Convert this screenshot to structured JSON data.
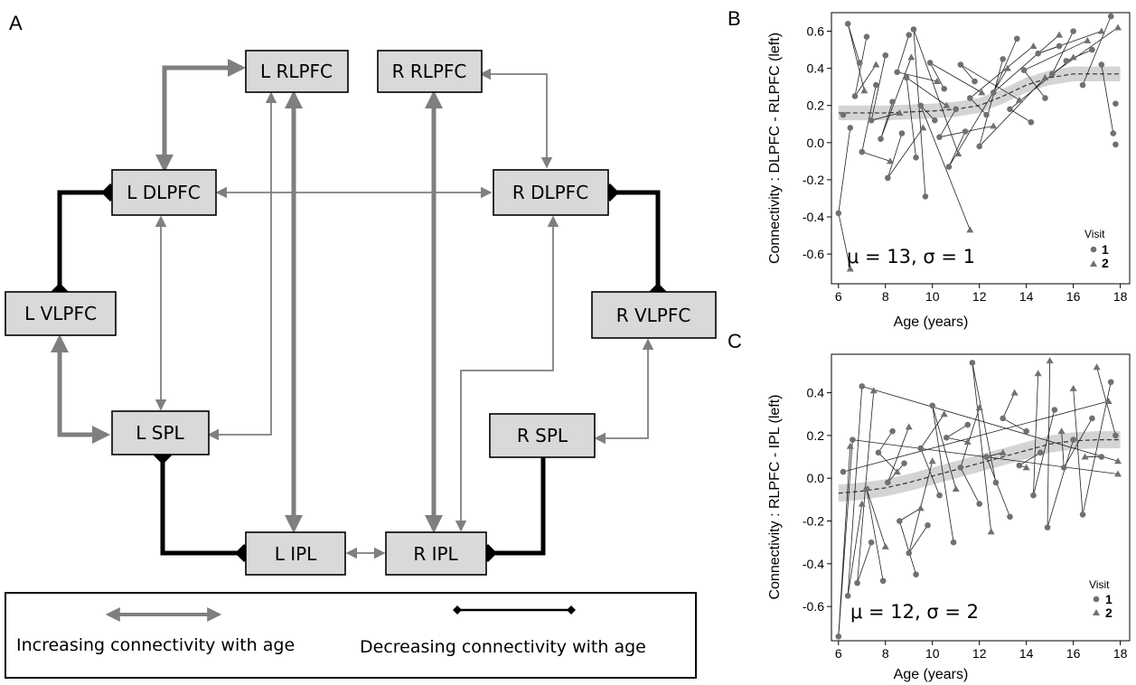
{
  "panels": {
    "a": "A",
    "b": "B",
    "c": "C"
  },
  "diagram": {
    "nodes": [
      {
        "id": "l_rlpfc",
        "label": "L RLPFC"
      },
      {
        "id": "r_rlpfc",
        "label": "R RLPFC"
      },
      {
        "id": "l_dlpfc",
        "label": "L DLPFC"
      },
      {
        "id": "r_dlpfc",
        "label": "R DLPFC"
      },
      {
        "id": "l_vlpfc",
        "label": "L VLPFC"
      },
      {
        "id": "r_vlpfc",
        "label": "R VLPFC"
      },
      {
        "id": "l_spl",
        "label": "L SPL"
      },
      {
        "id": "r_spl",
        "label": "R SPL"
      },
      {
        "id": "l_ipl",
        "label": "L IPL"
      },
      {
        "id": "r_ipl",
        "label": "R IPL"
      }
    ],
    "edges": [
      {
        "from": "l_dlpfc",
        "to": "l_rlpfc",
        "type": "increasing",
        "strength": "strong"
      },
      {
        "from": "l_rlpfc",
        "to": "l_ipl",
        "type": "increasing",
        "strength": "strong"
      },
      {
        "from": "r_rlpfc",
        "to": "r_ipl",
        "type": "increasing",
        "strength": "strong"
      },
      {
        "from": "l_vlpfc",
        "to": "l_spl",
        "type": "increasing",
        "strength": "strong"
      },
      {
        "from": "l_spl",
        "to": "l_rlpfc",
        "type": "increasing",
        "strength": "weak"
      },
      {
        "from": "l_dlpfc",
        "to": "l_spl",
        "type": "increasing",
        "strength": "weak"
      },
      {
        "from": "l_dlpfc",
        "to": "r_dlpfc",
        "type": "increasing",
        "strength": "weak"
      },
      {
        "from": "r_rlpfc",
        "to": "r_dlpfc",
        "type": "increasing",
        "strength": "weak"
      },
      {
        "from": "r_dlpfc",
        "to": "r_ipl",
        "type": "increasing",
        "strength": "weak"
      },
      {
        "from": "r_vlpfc",
        "to": "r_spl",
        "type": "increasing",
        "strength": "weak"
      },
      {
        "from": "l_ipl",
        "to": "r_ipl",
        "type": "increasing",
        "strength": "weak"
      },
      {
        "from": "l_dlpfc",
        "to": "l_vlpfc",
        "type": "decreasing"
      },
      {
        "from": "r_dlpfc",
        "to": "r_vlpfc",
        "type": "decreasing"
      },
      {
        "from": "l_spl",
        "to": "l_ipl",
        "type": "decreasing"
      },
      {
        "from": "r_spl",
        "to": "r_ipl",
        "type": "decreasing"
      }
    ],
    "legend": {
      "increasing": "Increasing connectivity with age",
      "decreasing": "Decreasing connectivity with age"
    }
  },
  "chart_data": [
    {
      "type": "scatter",
      "panel": "B",
      "xlabel": "Age (years)",
      "ylabel": "Connectivity : DLPFC - RLPFC (left)",
      "xlim": [
        5.7,
        18.4
      ],
      "ylim": [
        -0.76,
        0.7
      ],
      "xticks": [
        6,
        8,
        10,
        12,
        14,
        16,
        18
      ],
      "yticks": [
        -0.6,
        -0.4,
        -0.2,
        0.0,
        0.2,
        0.4,
        0.6
      ],
      "ytick_labels": [
        "-0.6",
        "-0.4",
        "-0.2",
        "0.0",
        "0.2",
        "0.4",
        "0.6"
      ],
      "annotation": "μ = 13, σ = 1",
      "legend": {
        "title": "Visit",
        "entries": [
          "1",
          "2"
        ],
        "position": "bottom-right"
      },
      "series": [
        {
          "name": "1",
          "marker": "circle",
          "points": [
            [
              6.0,
              -0.38
            ],
            [
              6.2,
              0.15
            ],
            [
              6.4,
              0.64
            ],
            [
              6.5,
              0.08
            ],
            [
              6.7,
              0.25
            ],
            [
              6.9,
              0.43
            ],
            [
              7.0,
              -0.05
            ],
            [
              7.2,
              0.57
            ],
            [
              7.4,
              0.12
            ],
            [
              7.6,
              0.31
            ],
            [
              7.8,
              0.02
            ],
            [
              8.0,
              0.47
            ],
            [
              8.1,
              -0.19
            ],
            [
              8.3,
              0.22
            ],
            [
              8.5,
              0.38
            ],
            [
              8.7,
              0.05
            ],
            [
              8.9,
              0.35
            ],
            [
              9.0,
              0.58
            ],
            [
              9.2,
              0.61
            ],
            [
              9.3,
              -0.08
            ],
            [
              9.5,
              0.2
            ],
            [
              9.7,
              -0.29
            ],
            [
              9.9,
              0.43
            ],
            [
              10.1,
              0.12
            ],
            [
              10.3,
              0.03
            ],
            [
              10.5,
              0.29
            ],
            [
              10.7,
              -0.13
            ],
            [
              11.0,
              0.18
            ],
            [
              11.2,
              0.42
            ],
            [
              11.4,
              0.06
            ],
            [
              11.6,
              0.24
            ],
            [
              11.8,
              0.33
            ],
            [
              12.0,
              -0.02
            ],
            [
              12.3,
              0.15
            ],
            [
              12.6,
              0.27
            ],
            [
              13.0,
              0.45
            ],
            [
              13.3,
              0.18
            ],
            [
              13.6,
              0.56
            ],
            [
              13.9,
              0.39
            ],
            [
              14.2,
              0.11
            ],
            [
              14.5,
              0.48
            ],
            [
              14.8,
              0.24
            ],
            [
              15.1,
              0.37
            ],
            [
              15.4,
              0.52
            ],
            [
              15.7,
              0.44
            ],
            [
              16.0,
              0.6
            ],
            [
              16.4,
              0.31
            ],
            [
              16.8,
              0.5
            ],
            [
              17.2,
              0.42
            ],
            [
              17.6,
              0.68
            ],
            [
              17.8,
              0.21
            ],
            [
              17.7,
              0.05
            ],
            [
              17.8,
              -0.01
            ]
          ]
        },
        {
          "name": "2",
          "marker": "triangle",
          "points": [
            [
              6.5,
              -0.68
            ],
            [
              7.1,
              0.28
            ],
            [
              7.6,
              0.42
            ],
            [
              8.2,
              -0.1
            ],
            [
              8.6,
              0.16
            ],
            [
              9.1,
              0.46
            ],
            [
              9.6,
              0.08
            ],
            [
              10.2,
              0.33
            ],
            [
              10.6,
              0.2
            ],
            [
              11.1,
              -0.06
            ],
            [
              11.6,
              -0.47
            ],
            [
              12.1,
              0.27
            ],
            [
              12.6,
              0.09
            ],
            [
              13.2,
              0.4
            ],
            [
              13.7,
              0.23
            ],
            [
              14.3,
              0.52
            ],
            [
              14.8,
              0.35
            ],
            [
              15.4,
              0.58
            ],
            [
              16.0,
              0.46
            ],
            [
              16.6,
              0.55
            ],
            [
              17.2,
              0.6
            ],
            [
              17.9,
              0.62
            ]
          ]
        }
      ],
      "trend": {
        "x": [
          6,
          7,
          8,
          9,
          10,
          11,
          12,
          13,
          14,
          15,
          16,
          17,
          18
        ],
        "y": [
          0.16,
          0.16,
          0.16,
          0.165,
          0.17,
          0.18,
          0.2,
          0.25,
          0.31,
          0.35,
          0.37,
          0.37,
          0.37
        ]
      }
    },
    {
      "type": "scatter",
      "panel": "C",
      "xlabel": "Age (years)",
      "ylabel": "Connectivity : RLPFC - IPL (left)",
      "xlim": [
        5.7,
        18.4
      ],
      "ylim": [
        -0.76,
        0.58
      ],
      "xticks": [
        6,
        8,
        10,
        12,
        14,
        16,
        18
      ],
      "yticks": [
        -0.6,
        -0.4,
        -0.2,
        0.0,
        0.2,
        0.4
      ],
      "ytick_labels": [
        "-0.6",
        "-0.4",
        "-0.2",
        "0.0",
        "0.2",
        "0.4"
      ],
      "annotation": "μ = 12, σ = 2",
      "legend": {
        "title": "Visit",
        "entries": [
          "1",
          "2"
        ],
        "position": "bottom-right"
      },
      "series": [
        {
          "name": "1",
          "marker": "circle",
          "points": [
            [
              6.0,
              -0.74
            ],
            [
              6.2,
              0.03
            ],
            [
              6.4,
              -0.55
            ],
            [
              6.6,
              0.18
            ],
            [
              6.8,
              -0.49
            ],
            [
              7.0,
              0.43
            ],
            [
              7.2,
              -0.05
            ],
            [
              7.4,
              -0.3
            ],
            [
              7.7,
              0.12
            ],
            [
              7.9,
              -0.48
            ],
            [
              8.1,
              -0.02
            ],
            [
              8.3,
              0.22
            ],
            [
              8.6,
              -0.2
            ],
            [
              8.8,
              0.07
            ],
            [
              9.0,
              -0.35
            ],
            [
              9.3,
              -0.45
            ],
            [
              9.5,
              0.14
            ],
            [
              9.8,
              -0.22
            ],
            [
              10.0,
              0.34
            ],
            [
              10.3,
              -0.08
            ],
            [
              10.6,
              0.19
            ],
            [
              10.9,
              -0.3
            ],
            [
              11.2,
              0.05
            ],
            [
              11.5,
              0.25
            ],
            [
              11.7,
              0.54
            ],
            [
              12.0,
              -0.12
            ],
            [
              12.3,
              0.1
            ],
            [
              12.7,
              -0.02
            ],
            [
              13.0,
              0.28
            ],
            [
              13.3,
              -0.18
            ],
            [
              13.7,
              0.06
            ],
            [
              14.0,
              0.22
            ],
            [
              14.3,
              -0.08
            ],
            [
              14.6,
              0.12
            ],
            [
              14.9,
              -0.23
            ],
            [
              15.2,
              0.32
            ],
            [
              15.6,
              0.05
            ],
            [
              16.0,
              0.18
            ],
            [
              16.4,
              -0.17
            ],
            [
              16.8,
              0.28
            ],
            [
              17.2,
              0.1
            ],
            [
              17.6,
              0.45
            ],
            [
              17.8,
              0.2
            ]
          ]
        },
        {
          "name": "2",
          "marker": "triangle",
          "points": [
            [
              6.5,
              0.15
            ],
            [
              7.0,
              -0.12
            ],
            [
              7.5,
              0.41
            ],
            [
              8.0,
              -0.32
            ],
            [
              8.5,
              0.03
            ],
            [
              9.0,
              0.24
            ],
            [
              9.5,
              -0.14
            ],
            [
              10.0,
              0.08
            ],
            [
              10.5,
              0.3
            ],
            [
              11.0,
              -0.05
            ],
            [
              11.5,
              0.17
            ],
            [
              12.0,
              0.33
            ],
            [
              12.5,
              -0.25
            ],
            [
              13.0,
              0.12
            ],
            [
              13.5,
              0.4
            ],
            [
              14.0,
              0.05
            ],
            [
              14.5,
              0.49
            ],
            [
              15.0,
              0.55
            ],
            [
              15.5,
              0.22
            ],
            [
              16.0,
              0.42
            ],
            [
              16.5,
              0.1
            ],
            [
              17.0,
              0.52
            ],
            [
              17.5,
              0.36
            ],
            [
              17.9,
              0.02
            ],
            [
              17.9,
              0.08
            ]
          ]
        }
      ],
      "trend": {
        "x": [
          6,
          7,
          8,
          9,
          10,
          11,
          12,
          13,
          14,
          15,
          16,
          17,
          18
        ],
        "y": [
          -0.07,
          -0.06,
          -0.045,
          -0.02,
          0.01,
          0.04,
          0.07,
          0.1,
          0.13,
          0.16,
          0.175,
          0.18,
          0.18
        ]
      }
    }
  ]
}
